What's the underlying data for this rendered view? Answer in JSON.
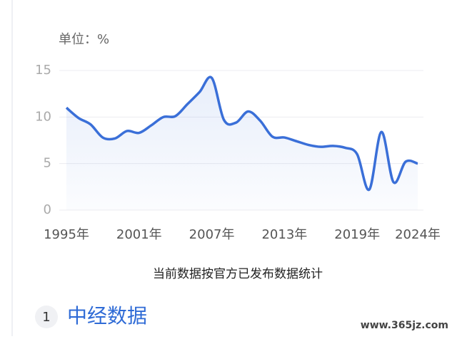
{
  "chart_data": {
    "type": "line",
    "unit_label": "单位：%",
    "x": [
      1995,
      1996,
      1997,
      1998,
      1999,
      2000,
      2001,
      2002,
      2003,
      2004,
      2005,
      2006,
      2007,
      2008,
      2009,
      2010,
      2011,
      2012,
      2013,
      2014,
      2015,
      2016,
      2017,
      2018,
      2019,
      2020,
      2021,
      2022,
      2023,
      2024
    ],
    "series": [
      {
        "color": "#3a6fd8",
        "values": [
          11.0,
          9.9,
          9.2,
          7.8,
          7.7,
          8.5,
          8.3,
          9.1,
          10.0,
          10.1,
          11.4,
          12.7,
          14.2,
          9.7,
          9.4,
          10.6,
          9.6,
          7.9,
          7.8,
          7.4,
          7.0,
          6.8,
          6.9,
          6.7,
          6.0,
          2.2,
          8.4,
          3.0,
          5.2,
          5.0
        ]
      }
    ],
    "xlim": [
      1995,
      2024
    ],
    "xticks": [
      {
        "value": 1995,
        "label": "1995年"
      },
      {
        "value": 2001,
        "label": "2001年"
      },
      {
        "value": 2007,
        "label": "2007年"
      },
      {
        "value": 2013,
        "label": "2013年"
      },
      {
        "value": 2019,
        "label": "2019年"
      },
      {
        "value": 2024,
        "label": "2024年"
      }
    ],
    "ylim": [
      0,
      15
    ],
    "yticks": [
      0,
      5,
      10,
      15
    ],
    "grid": true,
    "caption": "当前数据按官方已发布数据统计"
  },
  "section": {
    "number": "1",
    "title": "中经数据"
  },
  "watermark": "www.365jz.com"
}
